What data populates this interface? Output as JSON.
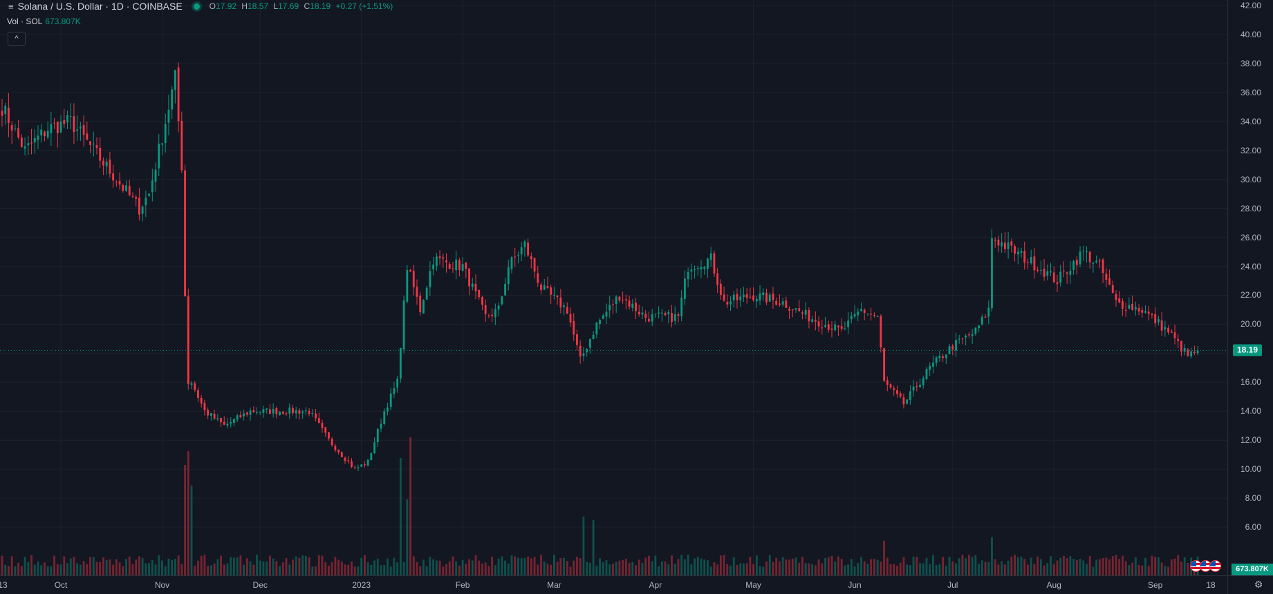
{
  "legend": {
    "menu_icon": "hamburger-icon",
    "symbol": "Solana / U.S. Dollar · 1D · COINBASE",
    "open_key": "O",
    "open": "17.92",
    "high_key": "H",
    "high": "18.57",
    "low_key": "L",
    "low": "17.69",
    "close_key": "C",
    "close": "18.19",
    "change": "+0.27 (+1.51%)"
  },
  "volume_legend": {
    "label": "Vol · SOL",
    "value": "673.807K"
  },
  "collapse_button": "^",
  "price_axis": {
    "ticks": [
      "42.00",
      "40.00",
      "38.00",
      "36.00",
      "34.00",
      "32.00",
      "30.00",
      "28.00",
      "26.00",
      "24.00",
      "22.00",
      "20.00",
      "18.00",
      "16.00",
      "14.00",
      "12.00",
      "10.00",
      "8.00",
      "6.00"
    ],
    "last_price": "18.19",
    "volume_value": "673.807K"
  },
  "time_axis": {
    "ticks": [
      "13",
      "Oct",
      "Nov",
      "Dec",
      "2023",
      "Feb",
      "Mar",
      "Apr",
      "May",
      "Jun",
      "Jul",
      "Aug",
      "Sep",
      "18"
    ]
  },
  "colors": {
    "up": "#089981",
    "down": "#f23645",
    "background": "#131722",
    "grid": "#1e222d"
  },
  "icons": {
    "settings": "gear-icon",
    "events": "us-flag-icon"
  },
  "chart_data": {
    "type": "candlestick",
    "symbol": "SOL/USD",
    "interval": "1D",
    "ylim": [
      5,
      42
    ],
    "x_range": [
      "2022-09-13",
      "2023-09-18"
    ],
    "last_price": 18.19,
    "anchors": [
      [
        "2022-09-13",
        35
      ],
      [
        "2022-09-20",
        32
      ],
      [
        "2022-09-27",
        33.5
      ],
      [
        "2022-10-04",
        34
      ],
      [
        "2022-10-11",
        32
      ],
      [
        "2022-10-18",
        30
      ],
      [
        "2022-10-25",
        28
      ],
      [
        "2022-10-28",
        29
      ],
      [
        "2022-11-01",
        33
      ],
      [
        "2022-11-05",
        37
      ],
      [
        "2022-11-07",
        31
      ],
      [
        "2022-11-08",
        22
      ],
      [
        "2022-11-09",
        16
      ],
      [
        "2022-11-10",
        16
      ],
      [
        "2022-11-14",
        14
      ],
      [
        "2022-11-20",
        13
      ],
      [
        "2022-11-28",
        14
      ],
      [
        "2022-12-10",
        14
      ],
      [
        "2022-12-16",
        14
      ],
      [
        "2022-12-22",
        12
      ],
      [
        "2022-12-30",
        10
      ],
      [
        "2023-01-03",
        10.5
      ],
      [
        "2023-01-08",
        14
      ],
      [
        "2023-01-12",
        16
      ],
      [
        "2023-01-15",
        24
      ],
      [
        "2023-01-19",
        21
      ],
      [
        "2023-01-23",
        24.5
      ],
      [
        "2023-02-01",
        24
      ],
      [
        "2023-02-08",
        20.5
      ],
      [
        "2023-02-12",
        21
      ],
      [
        "2023-02-15",
        24
      ],
      [
        "2023-02-20",
        25.5
      ],
      [
        "2023-02-25",
        22.5
      ],
      [
        "2023-03-05",
        21
      ],
      [
        "2023-03-09",
        17.5
      ],
      [
        "2023-03-14",
        20
      ],
      [
        "2023-03-21",
        22
      ],
      [
        "2023-03-29",
        20.5
      ],
      [
        "2023-04-08",
        20.5
      ],
      [
        "2023-04-11",
        24
      ],
      [
        "2023-04-18",
        24.5
      ],
      [
        "2023-04-22",
        21.5
      ],
      [
        "2023-05-01",
        22
      ],
      [
        "2023-05-10",
        21.5
      ],
      [
        "2023-05-18",
        20.5
      ],
      [
        "2023-05-28",
        19.5
      ],
      [
        "2023-06-03",
        21
      ],
      [
        "2023-06-08",
        20.5
      ],
      [
        "2023-06-10",
        16
      ],
      [
        "2023-06-16",
        14.5
      ],
      [
        "2023-06-24",
        17
      ],
      [
        "2023-07-01",
        18.5
      ],
      [
        "2023-07-08",
        19.5
      ],
      [
        "2023-07-12",
        21
      ],
      [
        "2023-07-13",
        26
      ],
      [
        "2023-07-20",
        25
      ],
      [
        "2023-07-27",
        24
      ],
      [
        "2023-08-02",
        23
      ],
      [
        "2023-08-10",
        25
      ],
      [
        "2023-08-15",
        24
      ],
      [
        "2023-08-20",
        21.5
      ],
      [
        "2023-08-28",
        21
      ],
      [
        "2023-09-05",
        19.5
      ],
      [
        "2023-09-11",
        17.8
      ],
      [
        "2023-09-14",
        18.19
      ]
    ],
    "volume_spikes": [
      [
        "2022-11-08",
        3.2
      ],
      [
        "2022-11-09",
        3.6
      ],
      [
        "2022-11-10",
        2.6
      ],
      [
        "2023-01-13",
        3.4
      ],
      [
        "2023-01-16",
        4.0
      ],
      [
        "2023-01-15",
        2.2
      ],
      [
        "2023-03-10",
        1.7
      ],
      [
        "2023-03-13",
        1.6
      ],
      [
        "2023-06-10",
        1.0
      ],
      [
        "2023-07-13",
        1.1
      ]
    ]
  }
}
